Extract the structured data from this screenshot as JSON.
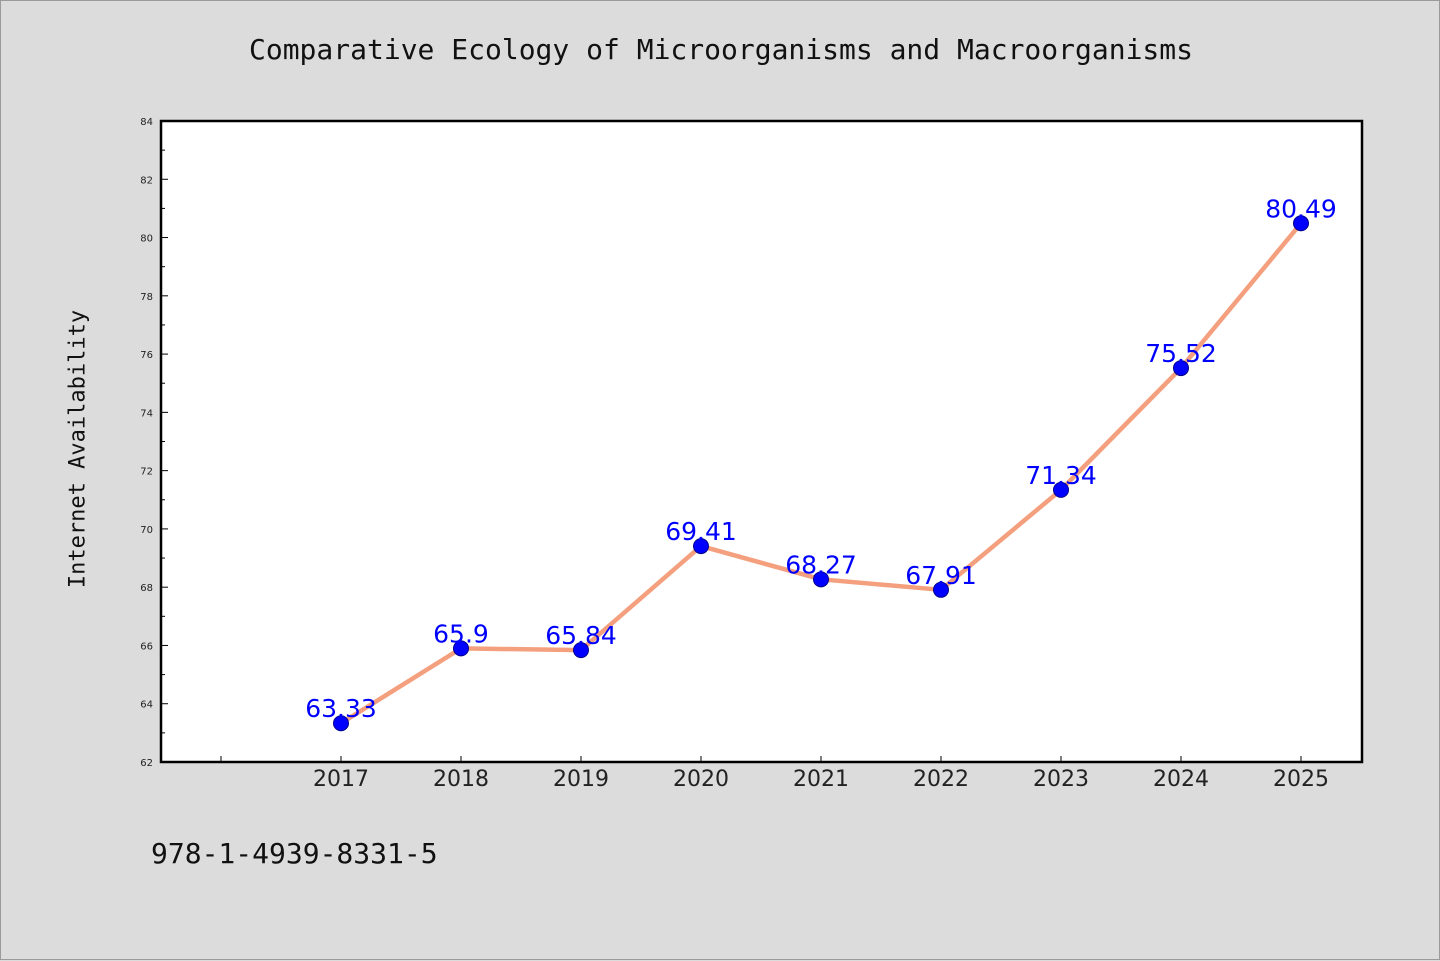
{
  "chart_data": {
    "type": "line",
    "title": "Comparative Ecology of Microorganisms and Macroorganisms",
    "xlabel": "",
    "ylabel": "Internet Availability",
    "categories": [
      "2017",
      "2018",
      "2019",
      "2020",
      "2021",
      "2022",
      "2023",
      "2024",
      "2025"
    ],
    "series": [
      {
        "values": [
          63.33,
          65.9,
          65.84,
          69.41,
          68.27,
          67.91,
          71.34,
          75.52,
          80.49
        ]
      }
    ],
    "data_labels": [
      "63.33",
      "65.9",
      "65.84",
      "69.41",
      "68.27",
      "67.91",
      "71.34",
      "75.52",
      "80.49"
    ],
    "ylim": [
      62,
      84
    ],
    "yticks": [
      62,
      64,
      66,
      68,
      70,
      72,
      74,
      76,
      78,
      80,
      82,
      84
    ],
    "grid": false,
    "legend": "none",
    "colors": {
      "line": "#f4a07e",
      "marker": "#0000ff",
      "label": "#0000ff",
      "background": "#dcdcdc",
      "plot": "#ffffff"
    }
  },
  "footnote": "978-1-4939-8331-5"
}
